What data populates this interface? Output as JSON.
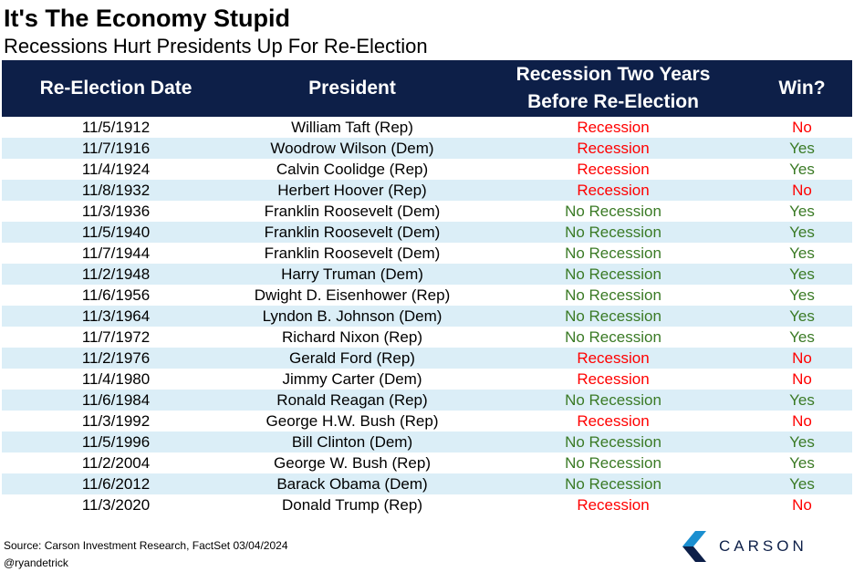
{
  "title": "It's The Economy Stupid",
  "subtitle": "Recessions Hurt Presidents Up For Re-Election",
  "colors": {
    "header_bg": "#0d1f48",
    "alt_row_bg": "#dbeef7",
    "recession_red": "#ff0000",
    "no_recession_green": "#3a7a25"
  },
  "chart_data": {
    "type": "table",
    "columns": [
      "Re-Election Date",
      "President",
      "Recession Two Years Before Re-Election",
      "Win?"
    ],
    "rows": [
      [
        "11/5/1912",
        "William Taft (Rep)",
        "Recession",
        "No"
      ],
      [
        "11/7/1916",
        "Woodrow Wilson (Dem)",
        "Recession",
        "Yes"
      ],
      [
        "11/4/1924",
        "Calvin Coolidge (Rep)",
        "Recession",
        "Yes"
      ],
      [
        "11/8/1932",
        "Herbert Hoover (Rep)",
        "Recession",
        "No"
      ],
      [
        "11/3/1936",
        "Franklin Roosevelt (Dem)",
        "No Recession",
        "Yes"
      ],
      [
        "11/5/1940",
        "Franklin Roosevelt (Dem)",
        "No Recession",
        "Yes"
      ],
      [
        "11/7/1944",
        "Franklin Roosevelt (Dem)",
        "No Recession",
        "Yes"
      ],
      [
        "11/2/1948",
        "Harry Truman (Dem)",
        "No Recession",
        "Yes"
      ],
      [
        "11/6/1956",
        "Dwight D. Eisenhower (Rep)",
        "No Recession",
        "Yes"
      ],
      [
        "11/3/1964",
        "Lyndon B. Johnson (Dem)",
        "No Recession",
        "Yes"
      ],
      [
        "11/7/1972",
        "Richard Nixon (Rep)",
        "No Recession",
        "Yes"
      ],
      [
        "11/2/1976",
        "Gerald Ford (Rep)",
        "Recession",
        "No"
      ],
      [
        "11/4/1980",
        "Jimmy Carter (Dem)",
        "Recession",
        "No"
      ],
      [
        "11/6/1984",
        "Ronald Reagan (Rep)",
        "No Recession",
        "Yes"
      ],
      [
        "11/3/1992",
        "George H.W. Bush (Rep)",
        "Recession",
        "No"
      ],
      [
        "11/5/1996",
        "Bill Clinton (Dem)",
        "No Recession",
        "Yes"
      ],
      [
        "11/2/2004",
        "George W. Bush (Rep)",
        "No Recession",
        "Yes"
      ],
      [
        "11/6/2012",
        "Barack Obama (Dem)",
        "No Recession",
        "Yes"
      ],
      [
        "11/3/2020",
        "Donald Trump (Rep)",
        "Recession",
        "No"
      ]
    ]
  },
  "header": {
    "col1": "Re-Election Date",
    "col2": "President",
    "col3_line1": "Recession Two Years",
    "col3_line2": "Before Re-Election",
    "col4": "Win?"
  },
  "footer": {
    "source": "Source: Carson Investment Research, FactSet 03/04/2024",
    "handle": "@ryandetrick",
    "logo_text": "CARSON"
  }
}
